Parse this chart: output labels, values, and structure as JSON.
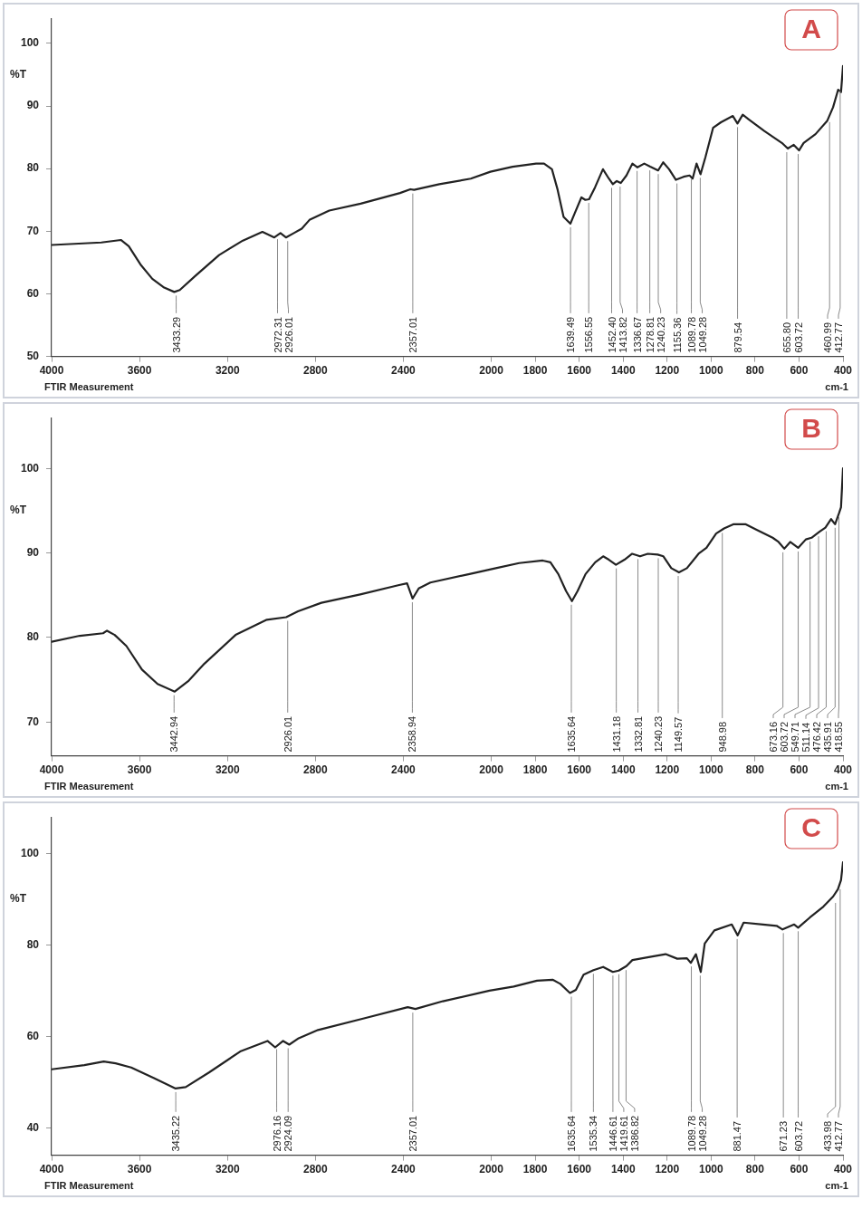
{
  "chart_data": [
    {
      "type": "line",
      "title": "A",
      "xlabel": "cm-1",
      "ylabel": "%T",
      "marker": "none",
      "grid": false,
      "legend": false,
      "xlim": [
        4000,
        400
      ],
      "xticks": [
        4000,
        3600,
        3200,
        2800,
        2400,
        2000,
        1800,
        1600,
        1400,
        1200,
        1000,
        800,
        600,
        400
      ],
      "ylim": [
        50,
        104
      ],
      "yticks": [
        50,
        60,
        70,
        80,
        90,
        100
      ],
      "x": [
        4000,
        3774,
        3685,
        3649,
        3596,
        3542,
        3488,
        3442,
        3417,
        3345,
        3238,
        3130,
        3041,
        2987,
        2959,
        2934,
        2898,
        2862,
        2827,
        2737,
        2594,
        2415,
        2368,
        2351,
        2236,
        2093,
        2004,
        1903,
        1796,
        1760,
        1724,
        1698,
        1671,
        1640,
        1621,
        1590,
        1572,
        1555,
        1528,
        1492,
        1465,
        1447,
        1429,
        1411,
        1385,
        1358,
        1335,
        1304,
        1277,
        1241,
        1218,
        1191,
        1160,
        1125,
        1098,
        1084,
        1066,
        1048,
        1026,
        991,
        955,
        901,
        880,
        856,
        830,
        758,
        678,
        651,
        624,
        600,
        579,
        525,
        472,
        445,
        422,
        409,
        400
      ],
      "series": [
        {
          "color": "#222222",
          "values": [
            67.8,
            68.2,
            68.6,
            67.6,
            64.7,
            62.4,
            61.0,
            60.3,
            60.6,
            62.9,
            66.2,
            68.5,
            69.9,
            69.0,
            69.7,
            69.0,
            69.7,
            70.4,
            71.8,
            73.3,
            74.4,
            76.1,
            76.7,
            76.6,
            77.5,
            78.4,
            79.5,
            80.3,
            80.8,
            80.8,
            79.9,
            76.6,
            72.3,
            71.2,
            72.8,
            75.4,
            75.0,
            75.1,
            77.0,
            79.9,
            78.4,
            77.5,
            78.0,
            77.7,
            78.9,
            80.8,
            80.2,
            80.8,
            80.3,
            79.7,
            81.0,
            79.9,
            78.2,
            78.7,
            78.9,
            78.4,
            80.8,
            79.1,
            81.8,
            86.5,
            87.4,
            88.4,
            87.2,
            88.6,
            87.9,
            86.0,
            84.1,
            83.2,
            83.8,
            82.9,
            84.1,
            85.5,
            87.6,
            89.8,
            92.6,
            92.2,
            96.4
          ]
        }
      ],
      "annotations": [
        "FTIR Measurement",
        {
          "text": "3433.29",
          "x": 3433.29,
          "y": 60.3
        },
        {
          "text": "2972.31",
          "x": 2972.31,
          "y": 69.3
        },
        {
          "text": "2926.01",
          "x": 2926.01,
          "y": 69.0
        },
        {
          "text": "2357.01",
          "x": 2357.01,
          "y": 76.6
        },
        {
          "text": "1639.49",
          "x": 1639.49,
          "y": 71.2
        },
        {
          "text": "1556.55",
          "x": 1556.55,
          "y": 75.1
        },
        {
          "text": "1452.40",
          "x": 1452.4,
          "y": 77.5
        },
        {
          "text": "1413.82",
          "x": 1413.82,
          "y": 77.7
        },
        {
          "text": "1336.67",
          "x": 1336.67,
          "y": 80.2
        },
        {
          "text": "1278.81",
          "x": 1278.81,
          "y": 80.3
        },
        {
          "text": "1240.23",
          "x": 1240.23,
          "y": 79.7
        },
        {
          "text": "1155.36",
          "x": 1155.36,
          "y": 78.2
        },
        {
          "text": "1089.78",
          "x": 1089.78,
          "y": 78.9
        },
        {
          "text": "1049.28",
          "x": 1049.28,
          "y": 79.1
        },
        {
          "text": "879.54",
          "x": 879.54,
          "y": 87.2
        },
        {
          "text": "655.80",
          "x": 655.8,
          "y": 83.2
        },
        {
          "text": "603.72",
          "x": 603.72,
          "y": 82.9
        },
        {
          "text": "460.99",
          "x": 460.99,
          "y": 88.0
        },
        {
          "text": "412.77",
          "x": 412.77,
          "y": 93.0
        }
      ]
    },
    {
      "type": "line",
      "title": "B",
      "xlabel": "cm-1",
      "ylabel": "%T",
      "marker": "none",
      "grid": false,
      "legend": false,
      "xlim": [
        4000,
        400
      ],
      "xticks": [
        4000,
        3600,
        3200,
        2800,
        2400,
        2000,
        1800,
        1600,
        1400,
        1200,
        1000,
        800,
        600,
        400
      ],
      "ylim": [
        66,
        106
      ],
      "yticks": [
        70,
        80,
        90,
        100
      ],
      "x": [
        4000,
        3872,
        3766,
        3748,
        3713,
        3660,
        3589,
        3518,
        3440,
        3376,
        3305,
        3163,
        3021,
        2933,
        2879,
        2773,
        2596,
        2419,
        2383,
        2358,
        2330,
        2277,
        2099,
        1979,
        1873,
        1766,
        1731,
        1695,
        1660,
        1633,
        1607,
        1571,
        1527,
        1491,
        1465,
        1433,
        1394,
        1359,
        1323,
        1288,
        1243,
        1217,
        1181,
        1146,
        1110,
        1057,
        1021,
        977,
        941,
        897,
        844,
        791,
        720,
        693,
        667,
        640,
        604,
        569,
        543,
        507,
        480,
        454,
        436,
        418,
        409,
        400
      ],
      "series": [
        {
          "color": "#222222",
          "values": [
            79.5,
            80.2,
            80.5,
            80.8,
            80.3,
            79.0,
            76.2,
            74.5,
            73.6,
            74.9,
            76.9,
            80.3,
            82.1,
            82.4,
            83.1,
            84.1,
            85.1,
            86.2,
            86.4,
            84.6,
            85.8,
            86.5,
            87.5,
            88.2,
            88.8,
            89.1,
            88.9,
            87.5,
            85.5,
            84.3,
            85.5,
            87.5,
            88.9,
            89.6,
            89.2,
            88.6,
            89.2,
            89.9,
            89.6,
            89.9,
            89.8,
            89.6,
            88.2,
            87.7,
            88.2,
            89.9,
            90.6,
            92.3,
            92.9,
            93.4,
            93.4,
            92.7,
            91.8,
            91.3,
            90.5,
            91.3,
            90.6,
            91.6,
            91.8,
            92.5,
            93.0,
            94.0,
            93.4,
            94.7,
            95.4,
            100.0
          ]
        }
      ],
      "annotations": [
        "FTIR Measurement",
        {
          "text": "3442.94",
          "x": 3442.94,
          "y": 73.6
        },
        {
          "text": "2926.01",
          "x": 2926.01,
          "y": 82.4
        },
        {
          "text": "2358.94",
          "x": 2358.94,
          "y": 84.6
        },
        {
          "text": "1635.64",
          "x": 1635.64,
          "y": 84.3
        },
        {
          "text": "1431.18",
          "x": 1431.18,
          "y": 88.6
        },
        {
          "text": "1332.81",
          "x": 1332.81,
          "y": 89.7
        },
        {
          "text": "1240.23",
          "x": 1240.23,
          "y": 89.8
        },
        {
          "text": "1149.57",
          "x": 1149.57,
          "y": 87.7
        },
        {
          "text": "948.98",
          "x": 948.98,
          "y": 92.8
        },
        {
          "text": "673.16",
          "x": 673.16,
          "y": 90.5
        },
        {
          "text": "603.72",
          "x": 603.72,
          "y": 90.6
        },
        {
          "text": "549.71",
          "x": 549.71,
          "y": 91.8
        },
        {
          "text": "511.14",
          "x": 511.14,
          "y": 92.4
        },
        {
          "text": "476.42",
          "x": 476.42,
          "y": 93.0
        },
        {
          "text": "435.91",
          "x": 435.91,
          "y": 93.4
        },
        {
          "text": "418.55",
          "x": 418.55,
          "y": 94.7
        }
      ]
    },
    {
      "type": "line",
      "title": "C",
      "xlabel": "cm-1",
      "ylabel": "%T",
      "marker": "none",
      "grid": false,
      "legend": false,
      "xlim": [
        4000,
        400
      ],
      "xticks": [
        4000,
        3600,
        3200,
        2800,
        2400,
        2000,
        1800,
        1600,
        1400,
        1200,
        1000,
        800,
        600,
        400
      ],
      "ylim": [
        34,
        108
      ],
      "yticks": [
        40,
        60,
        80,
        100
      ],
      "x": [
        4000,
        3851,
        3763,
        3709,
        3638,
        3532,
        3436,
        3390,
        3284,
        3142,
        3018,
        2983,
        2947,
        2919,
        2876,
        2788,
        2575,
        2380,
        2345,
        2220,
        2008,
        1898,
        1792,
        1721,
        1686,
        1642,
        1615,
        1580,
        1535,
        1491,
        1447,
        1420,
        1385,
        1358,
        1278,
        1207,
        1154,
        1110,
        1092,
        1069,
        1047,
        1029,
        985,
        906,
        879,
        852,
        764,
        702,
        675,
        622,
        604,
        551,
        489,
        445,
        423,
        409,
        400
      ],
      "series": [
        {
          "color": "#222222",
          "values": [
            52.8,
            53.7,
            54.5,
            54.1,
            53.2,
            50.8,
            48.6,
            48.9,
            52.1,
            56.7,
            59.0,
            57.6,
            59.0,
            58.2,
            59.6,
            61.4,
            64.0,
            66.4,
            66.0,
            67.7,
            70.0,
            70.9,
            72.2,
            72.4,
            71.5,
            69.5,
            70.2,
            73.5,
            74.5,
            75.2,
            74.1,
            74.4,
            75.4,
            76.7,
            77.4,
            78.0,
            77.0,
            77.1,
            76.1,
            78.0,
            74.1,
            80.3,
            83.2,
            84.5,
            82.1,
            84.9,
            84.5,
            84.2,
            83.4,
            84.5,
            83.8,
            86.0,
            88.4,
            90.6,
            92.2,
            94.2,
            98.1
          ]
        }
      ],
      "annotations": [
        "FTIR Measurement",
        {
          "text": "3435.22",
          "x": 3435.22,
          "y": 48.6
        },
        {
          "text": "2976.16",
          "x": 2976.16,
          "y": 58.0
        },
        {
          "text": "2924.09",
          "x": 2924.09,
          "y": 58.2
        },
        {
          "text": "2357.01",
          "x": 2357.01,
          "y": 66.0
        },
        {
          "text": "1635.64",
          "x": 1635.64,
          "y": 69.5
        },
        {
          "text": "1535.34",
          "x": 1535.34,
          "y": 74.5
        },
        {
          "text": "1446.61",
          "x": 1446.61,
          "y": 74.1
        },
        {
          "text": "1419.61",
          "x": 1419.61,
          "y": 74.4
        },
        {
          "text": "1386.82",
          "x": 1386.82,
          "y": 75.3
        },
        {
          "text": "1089.78",
          "x": 1089.78,
          "y": 76.1
        },
        {
          "text": "1049.28",
          "x": 1049.28,
          "y": 74.1
        },
        {
          "text": "881.47",
          "x": 881.47,
          "y": 82.1
        },
        {
          "text": "671.23",
          "x": 671.23,
          "y": 83.4
        },
        {
          "text": "603.72",
          "x": 603.72,
          "y": 83.8
        },
        {
          "text": "433.98",
          "x": 433.98,
          "y": 90.0
        },
        {
          "text": "412.77",
          "x": 412.77,
          "y": 93.0
        }
      ]
    }
  ]
}
